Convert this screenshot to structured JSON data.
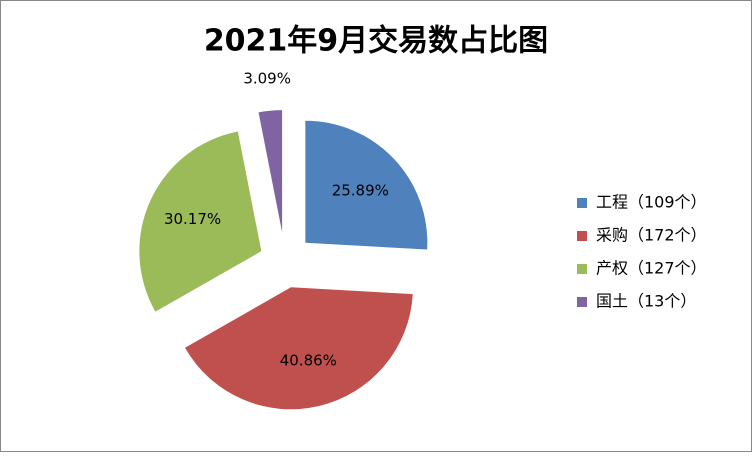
{
  "chart_data": {
    "type": "pie",
    "title": "2021年9月交易数占比图",
    "categories": [
      "工程（109个）",
      "采购（172个）",
      "产权（127个）",
      "国土（13个）"
    ],
    "values": [
      25.89,
      40.86,
      30.17,
      3.09
    ],
    "value_labels": [
      "25.89%",
      "40.86%",
      "30.17%",
      "3.09%"
    ],
    "colors": [
      "#4f81bd",
      "#c0504d",
      "#9bbb59",
      "#8064a2"
    ],
    "legend": "right"
  }
}
